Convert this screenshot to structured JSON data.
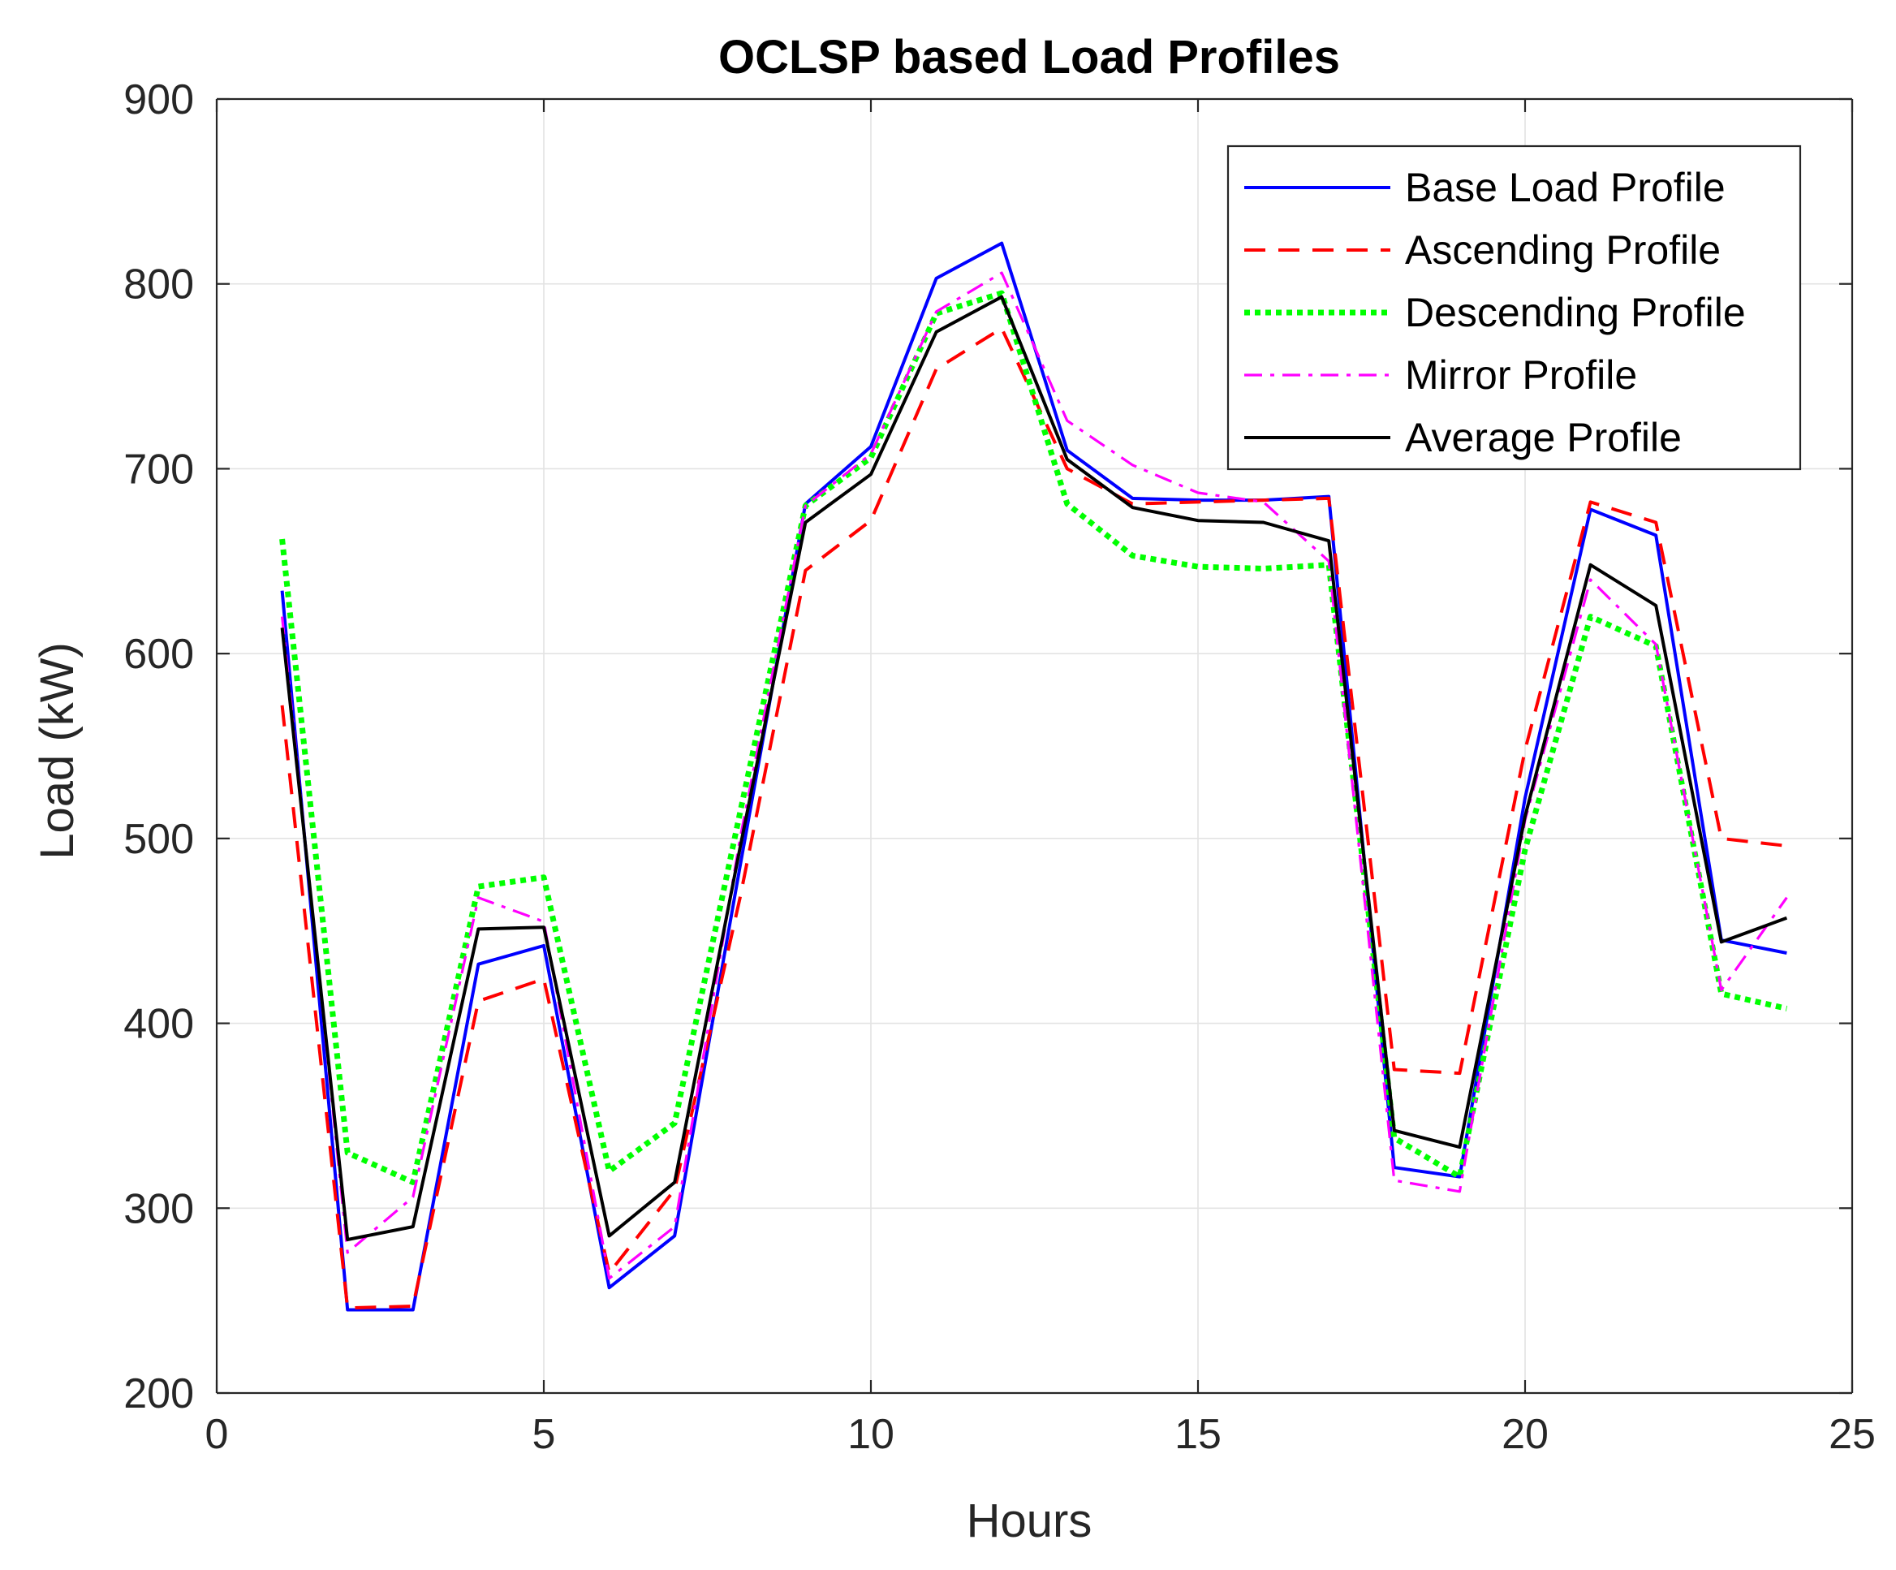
{
  "chart_data": {
    "type": "line",
    "title": "OCLSP based Load Profiles",
    "xlabel": "Hours",
    "ylabel": "Load (kW)",
    "xlim": [
      0,
      25
    ],
    "ylim": [
      200,
      900
    ],
    "xticks": [
      0,
      5,
      10,
      15,
      20,
      25
    ],
    "yticks": [
      200,
      300,
      400,
      500,
      600,
      700,
      800,
      900
    ],
    "grid": true,
    "legend_position": "top-right",
    "x": [
      1,
      2,
      3,
      4,
      5,
      6,
      7,
      8,
      9,
      10,
      11,
      12,
      13,
      14,
      15,
      16,
      17,
      18,
      19,
      20,
      21,
      22,
      23,
      24
    ],
    "series": [
      {
        "name": "Base Load Profile",
        "color": "#0000ff",
        "style": "solid",
        "values": [
          634,
          245,
          245,
          432,
          442,
          257,
          285,
          485,
          681,
          712,
          803,
          822,
          710,
          684,
          683,
          683,
          685,
          322,
          317,
          522,
          678,
          664,
          445,
          438
        ]
      },
      {
        "name": "Ascending Profile",
        "color": "#ff0000",
        "style": "dashed",
        "values": [
          572,
          246,
          247,
          412,
          424,
          265,
          310,
          468,
          645,
          672,
          754,
          776,
          700,
          681,
          682,
          683,
          684,
          375,
          373,
          548,
          682,
          671,
          500,
          496
        ]
      },
      {
        "name": "Descending Profile",
        "color": "#00ff00",
        "style": "dotted",
        "values": [
          662,
          330,
          314,
          474,
          479,
          320,
          346,
          514,
          680,
          706,
          784,
          795,
          681,
          653,
          647,
          646,
          648,
          338,
          317,
          494,
          620,
          604,
          416,
          408
        ]
      },
      {
        "name": "Mirror Profile",
        "color": "#ff00ff",
        "style": "dashdot",
        "values": [
          620,
          276,
          306,
          468,
          455,
          262,
          290,
          500,
          680,
          708,
          785,
          806,
          726,
          702,
          687,
          682,
          650,
          315,
          309,
          510,
          640,
          605,
          418,
          468
        ]
      },
      {
        "name": "Average Profile",
        "color": "#000000",
        "style": "solid",
        "values": [
          614,
          283,
          290,
          451,
          452,
          285,
          314,
          495,
          671,
          697,
          774,
          793,
          705,
          679,
          672,
          671,
          661,
          342,
          333,
          512,
          648,
          626,
          444,
          457
        ]
      }
    ]
  }
}
